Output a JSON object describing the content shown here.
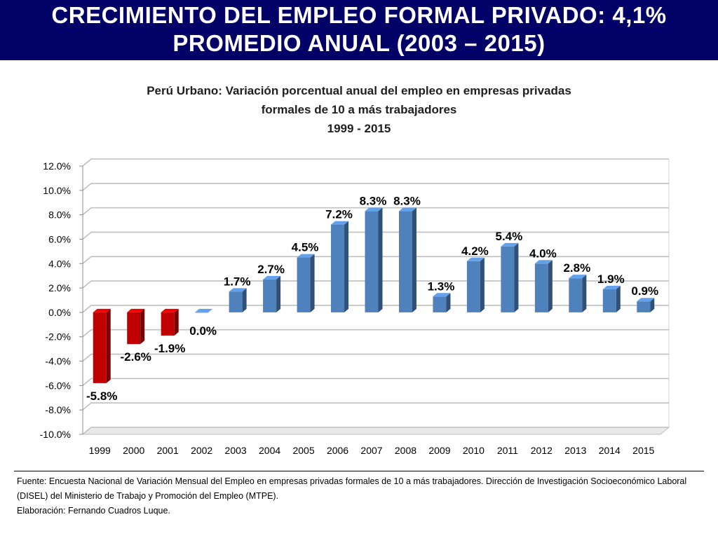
{
  "banner": {
    "line1": "CRECIMIENTO DEL EMPLEO FORMAL PRIVADO: 4,1%",
    "line2": "PROMEDIO ANUAL (2003 – 2015)"
  },
  "chart_data": {
    "type": "bar",
    "title": "Perú Urbano: Variación porcentual anual del empleo en empresas privadas formales de 10 a más trabajadores 1999 - 2015",
    "title_lines": [
      "Perú Urbano: Variación porcentual anual del empleo en empresas privadas",
      "formales de 10 a más trabajadores",
      "1999 - 2015"
    ],
    "xlabel": "",
    "ylabel": "",
    "categories": [
      "1999",
      "2000",
      "2001",
      "2002",
      "2003",
      "2004",
      "2005",
      "2006",
      "2007",
      "2008",
      "2009",
      "2010",
      "2011",
      "2012",
      "2013",
      "2014",
      "2015"
    ],
    "values": [
      -5.8,
      -2.6,
      -1.9,
      0.0,
      1.7,
      2.7,
      4.5,
      7.2,
      8.3,
      8.3,
      1.3,
      4.2,
      5.4,
      4.0,
      2.8,
      1.9,
      0.9
    ],
    "data_labels": [
      "-5.8%",
      "-2.6%",
      "-1.9%",
      "0.0%",
      "1.7%",
      "2.7%",
      "4.5%",
      "7.2%",
      "8.3%",
      "8.3%",
      "1.3%",
      "4.2%",
      "5.4%",
      "4.0%",
      "2.8%",
      "1.9%",
      "0.9%"
    ],
    "ylim": [
      -10.0,
      12.0
    ],
    "yticks": [
      -10,
      -8,
      -6,
      -4,
      -2,
      0,
      2,
      4,
      6,
      8,
      10,
      12
    ],
    "ytick_labels": [
      "-10.0%",
      "-8.0%",
      "-6.0%",
      "-4.0%",
      "-2.0%",
      "0.0%",
      "2.0%",
      "4.0%",
      "6.0%",
      "8.0%",
      "10.0%",
      "12.0%"
    ],
    "grid": true,
    "legend": "none",
    "colors": {
      "positive": "#4f81bd",
      "negative": "#c00000",
      "grid": "#bfbfbf"
    }
  },
  "footer": {
    "source": "Fuente: Encuesta Nacional de Variación Mensual del Empleo en empresas privadas formales de 10 a más trabajadores. Dirección de Investigación Socioeconómico Laboral (DISEL) del Ministerio de Trabajo y Promoción del Empleo (MTPE).",
    "author": "Elaboración: Fernando Cuadros Luque."
  }
}
